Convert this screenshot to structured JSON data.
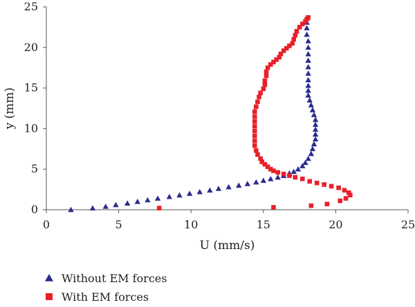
{
  "chart_data": {
    "type": "scatter",
    "xlabel": "U (mm/s)",
    "ylabel": "y (mm)",
    "xlim": [
      0,
      25
    ],
    "ylim": [
      0,
      25
    ],
    "x_ticks": [
      "0",
      "5",
      "10",
      "15",
      "20",
      "25"
    ],
    "y_ticks": [
      "0",
      "5",
      "10",
      "15",
      "20",
      "25"
    ],
    "grid": false,
    "legend_position": "bottom-left",
    "series": [
      {
        "name": "Without EM forces",
        "marker": "triangle",
        "color": "#2b2b8f",
        "points": [
          [
            1.7,
            0.0
          ],
          [
            3.2,
            0.2
          ],
          [
            4.1,
            0.4
          ],
          [
            4.8,
            0.6
          ],
          [
            5.6,
            0.8
          ],
          [
            6.3,
            1.0
          ],
          [
            7.0,
            1.2
          ],
          [
            7.7,
            1.4
          ],
          [
            8.5,
            1.6
          ],
          [
            9.2,
            1.8
          ],
          [
            9.9,
            2.0
          ],
          [
            10.6,
            2.2
          ],
          [
            11.3,
            2.4
          ],
          [
            11.9,
            2.6
          ],
          [
            12.6,
            2.8
          ],
          [
            13.3,
            3.0
          ],
          [
            13.9,
            3.2
          ],
          [
            14.5,
            3.4
          ],
          [
            15.0,
            3.6
          ],
          [
            15.5,
            3.8
          ],
          [
            16.0,
            4.0
          ],
          [
            16.4,
            4.2
          ],
          [
            16.8,
            4.5
          ],
          [
            17.1,
            4.7
          ],
          [
            17.4,
            5.0
          ],
          [
            17.7,
            5.4
          ],
          [
            17.9,
            5.8
          ],
          [
            18.1,
            6.3
          ],
          [
            18.3,
            6.9
          ],
          [
            18.4,
            7.5
          ],
          [
            18.5,
            8.1
          ],
          [
            18.6,
            8.7
          ],
          [
            18.6,
            9.3
          ],
          [
            18.6,
            9.9
          ],
          [
            18.6,
            10.5
          ],
          [
            18.6,
            11.1
          ],
          [
            18.5,
            11.7
          ],
          [
            18.4,
            12.3
          ],
          [
            18.3,
            12.9
          ],
          [
            18.2,
            13.5
          ],
          [
            18.1,
            14.1
          ],
          [
            18.1,
            14.7
          ],
          [
            18.1,
            15.3
          ],
          [
            18.1,
            16.0
          ],
          [
            18.1,
            16.8
          ],
          [
            18.1,
            17.6
          ],
          [
            18.1,
            18.4
          ],
          [
            18.1,
            19.2
          ],
          [
            18.1,
            20.0
          ],
          [
            18.1,
            20.8
          ],
          [
            18.0,
            21.6
          ],
          [
            18.0,
            22.4
          ],
          [
            18.0,
            23.1
          ],
          [
            18.0,
            23.6
          ]
        ]
      },
      {
        "name": "With EM forces",
        "marker": "square",
        "color": "#e8202a",
        "points": [
          [
            7.8,
            0.2
          ],
          [
            15.7,
            0.3
          ],
          [
            18.3,
            0.5
          ],
          [
            19.4,
            0.7
          ],
          [
            20.3,
            1.1
          ],
          [
            20.7,
            1.4
          ],
          [
            21.0,
            1.8
          ],
          [
            20.9,
            2.1
          ],
          [
            20.6,
            2.4
          ],
          [
            20.2,
            2.7
          ],
          [
            19.7,
            2.9
          ],
          [
            19.2,
            3.1
          ],
          [
            18.7,
            3.3
          ],
          [
            18.2,
            3.5
          ],
          [
            17.7,
            3.8
          ],
          [
            17.2,
            4.0
          ],
          [
            16.8,
            4.2
          ],
          [
            16.4,
            4.4
          ],
          [
            16.0,
            4.6
          ],
          [
            15.7,
            4.8
          ],
          [
            15.5,
            5.0
          ],
          [
            15.3,
            5.3
          ],
          [
            15.1,
            5.6
          ],
          [
            14.9,
            5.9
          ],
          [
            14.8,
            6.3
          ],
          [
            14.6,
            6.8
          ],
          [
            14.5,
            7.3
          ],
          [
            14.4,
            7.9
          ],
          [
            14.4,
            8.5
          ],
          [
            14.4,
            9.1
          ],
          [
            14.4,
            9.7
          ],
          [
            14.4,
            10.3
          ],
          [
            14.4,
            10.9
          ],
          [
            14.4,
            11.5
          ],
          [
            14.4,
            12.1
          ],
          [
            14.5,
            12.7
          ],
          [
            14.6,
            13.3
          ],
          [
            14.7,
            13.9
          ],
          [
            14.8,
            14.4
          ],
          [
            15.0,
            14.9
          ],
          [
            15.1,
            15.4
          ],
          [
            15.1,
            15.9
          ],
          [
            15.2,
            16.5
          ],
          [
            15.2,
            17.0
          ],
          [
            15.3,
            17.5
          ],
          [
            15.5,
            17.9
          ],
          [
            15.7,
            18.2
          ],
          [
            15.9,
            18.5
          ],
          [
            16.1,
            18.8
          ],
          [
            16.2,
            19.2
          ],
          [
            16.4,
            19.6
          ],
          [
            16.6,
            19.9
          ],
          [
            16.8,
            20.2
          ],
          [
            17.0,
            20.5
          ],
          [
            17.1,
            21.0
          ],
          [
            17.2,
            21.5
          ],
          [
            17.3,
            22.0
          ],
          [
            17.5,
            22.5
          ],
          [
            17.7,
            22.9
          ],
          [
            17.9,
            23.2
          ],
          [
            18.0,
            23.5
          ],
          [
            18.1,
            23.7
          ]
        ]
      }
    ]
  }
}
